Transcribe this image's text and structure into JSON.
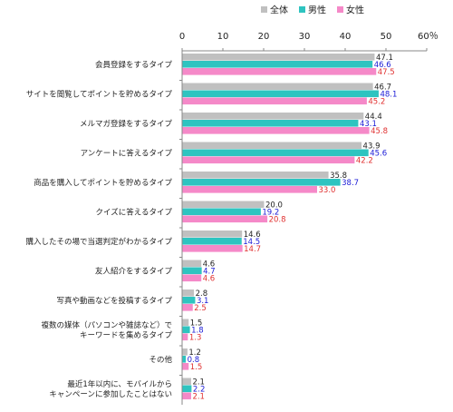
{
  "chart_data": {
    "type": "bar",
    "orientation": "horizontal",
    "title": "",
    "xlabel": "",
    "ylabel": "",
    "xlim": [
      0,
      60
    ],
    "x_ticks": [
      "0",
      "10",
      "20",
      "30",
      "40",
      "50",
      "60％"
    ],
    "grid": false,
    "legend_position": "top-right",
    "categories": [
      [
        "会員登録をするタイプ"
      ],
      [
        "サイトを閲覧してポイントを貯めるタイプ"
      ],
      [
        "メルマガ登録をするタイプ"
      ],
      [
        "アンケートに答えるタイプ"
      ],
      [
        "商品を購入してポイントを貯めるタイプ"
      ],
      [
        "クイズに答えるタイプ"
      ],
      [
        "購入したその場で当選判定がわかるタイプ"
      ],
      [
        "友人紹介をするタイプ"
      ],
      [
        "写真や動画などを投稿するタイプ"
      ],
      [
        "複数の媒体（パソコンや雑誌など）で",
        "キーワードを集めるタイプ"
      ],
      [
        "その他"
      ],
      [
        "最近1年以内に、モバイルから",
        "キャンペーンに参加したことはない"
      ]
    ],
    "series": [
      {
        "name": "全体",
        "color": "#c0c0c0",
        "label_color": "#222222",
        "values": [
          47.1,
          46.7,
          44.4,
          43.9,
          35.8,
          20.0,
          14.6,
          4.6,
          2.8,
          1.5,
          1.2,
          2.1
        ],
        "labels": [
          "47.1",
          "46.7",
          "44.4",
          "43.9",
          "35.8",
          "20.0",
          "14.6",
          "4.6",
          "2.8",
          "1.5",
          "1.2",
          "2.1"
        ]
      },
      {
        "name": "男性",
        "color": "#2ec4c0",
        "label_color": "#1a1ad6",
        "values": [
          46.6,
          48.1,
          43.1,
          45.6,
          38.7,
          19.2,
          14.5,
          4.7,
          3.1,
          1.8,
          0.8,
          2.2
        ],
        "labels": [
          "46.6",
          "48.1",
          "43.1",
          "45.6",
          "38.7",
          "19.2",
          "14.5",
          "4.7",
          "3.1",
          "1.8",
          "0.8",
          "2.2"
        ]
      },
      {
        "name": "女性",
        "color": "#f589c8",
        "label_color": "#e03030",
        "values": [
          47.5,
          45.2,
          45.8,
          42.2,
          33.0,
          20.8,
          14.7,
          4.6,
          2.5,
          1.3,
          1.5,
          2.1
        ],
        "labels": [
          "47.5",
          "45.2",
          "45.8",
          "42.2",
          "33.0",
          "20.8",
          "14.7",
          "4.6",
          "2.5",
          "1.3",
          "1.5",
          "2.1"
        ]
      }
    ]
  }
}
